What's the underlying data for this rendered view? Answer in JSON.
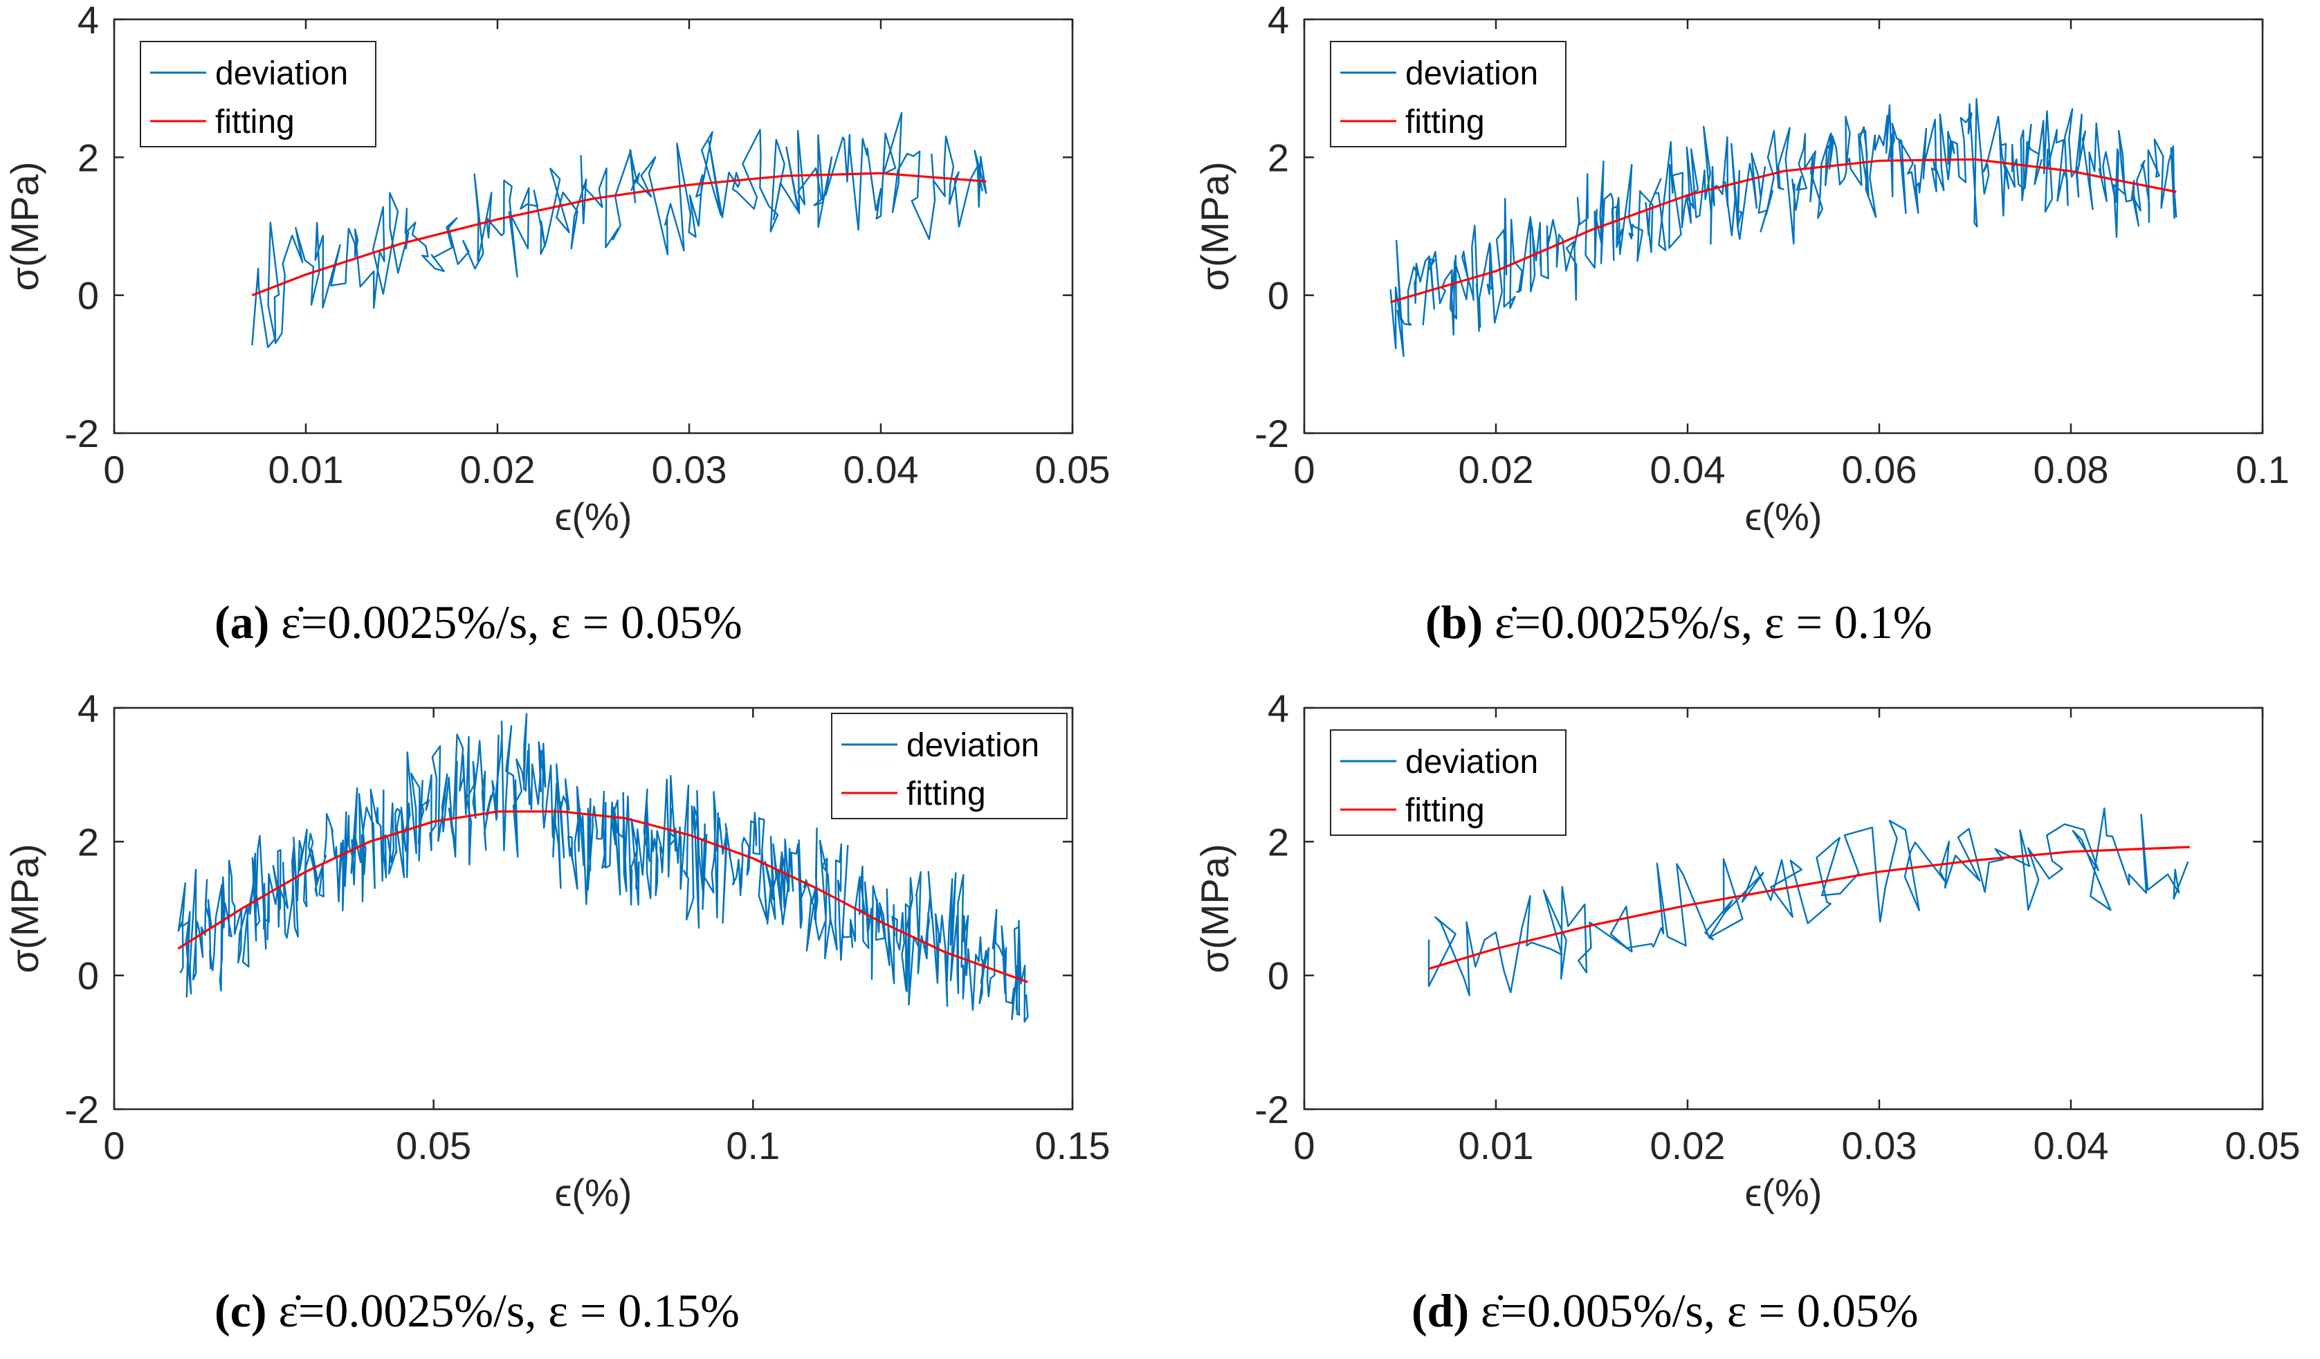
{
  "colors": {
    "deviation": "#0072BD",
    "fitting": "#FF0000",
    "axis": "#262626"
  },
  "chart_data": [
    {
      "id": "a",
      "type": "line",
      "caption": {
        "tag": "(a)",
        "text": "ε̇=0.0025%/s, ε = 0.05%"
      },
      "xlabel": "ϵ(%)",
      "ylabel": "σ(MPa)",
      "xlim": [
        0,
        0.05
      ],
      "ylim": [
        -2,
        4
      ],
      "xticks": [
        0,
        0.01,
        0.02,
        0.03,
        0.04,
        0.05
      ],
      "xtick_labels": [
        "0",
        "0.01",
        "0.02",
        "0.03",
        "0.04",
        "0.05"
      ],
      "yticks": [
        -2,
        0,
        2,
        4
      ],
      "ytick_labels": [
        "-2",
        "0",
        "2",
        "4"
      ],
      "legend": {
        "position": "top-left",
        "entries": [
          "deviation",
          "fitting"
        ]
      },
      "series": [
        {
          "name": "deviation",
          "noisy": true,
          "amplitude": 0.9,
          "points": 220,
          "x_range": [
            0.0072,
            0.0455
          ],
          "trend": [
            [
              0.0072,
              0.0
            ],
            [
              0.02,
              1.1
            ],
            [
              0.03,
              1.6
            ],
            [
              0.038,
              1.75
            ],
            [
              0.0455,
              1.65
            ]
          ]
        },
        {
          "name": "fitting",
          "x": [
            0.0072,
            0.01,
            0.015,
            0.02,
            0.025,
            0.03,
            0.035,
            0.04,
            0.0455
          ],
          "y": [
            0.0,
            0.3,
            0.75,
            1.1,
            1.4,
            1.6,
            1.73,
            1.77,
            1.65
          ]
        }
      ]
    },
    {
      "id": "b",
      "type": "line",
      "caption": {
        "tag": "(b)",
        "text": "ε̇=0.0025%/s, ε = 0.1%"
      },
      "xlabel": "ϵ(%)",
      "ylabel": "σ(MPa)",
      "xlim": [
        0,
        0.1
      ],
      "ylim": [
        -2,
        4
      ],
      "xticks": [
        0,
        0.02,
        0.04,
        0.06,
        0.08,
        0.1
      ],
      "xtick_labels": [
        "0",
        "0.02",
        "0.04",
        "0.06",
        "0.08",
        "0.1"
      ],
      "yticks": [
        -2,
        0,
        2,
        4
      ],
      "ytick_labels": [
        "-2",
        "0",
        "2",
        "4"
      ],
      "legend": {
        "position": "top-left",
        "entries": [
          "deviation",
          "fitting"
        ]
      },
      "series": [
        {
          "name": "deviation",
          "noisy": true,
          "amplitude": 0.85,
          "points": 420,
          "x_range": [
            0.009,
            0.091
          ],
          "trend": [
            [
              0.009,
              -0.1
            ],
            [
              0.02,
              0.35
            ],
            [
              0.04,
              1.4
            ],
            [
              0.06,
              1.95
            ],
            [
              0.07,
              1.95
            ],
            [
              0.08,
              1.8
            ],
            [
              0.091,
              1.5
            ]
          ]
        },
        {
          "name": "fitting",
          "x": [
            0.009,
            0.02,
            0.03,
            0.04,
            0.05,
            0.06,
            0.07,
            0.08,
            0.091
          ],
          "y": [
            -0.1,
            0.35,
            0.95,
            1.45,
            1.8,
            1.95,
            1.97,
            1.8,
            1.5
          ]
        }
      ]
    },
    {
      "id": "c",
      "type": "line",
      "caption": {
        "tag": "(c)",
        "text": "ε̇=0.0025%/s, ε = 0.15%"
      },
      "xlabel": "ϵ(%)",
      "ylabel": "σ(MPa)",
      "xlim": [
        0,
        0.15
      ],
      "ylim": [
        -2,
        4
      ],
      "xticks": [
        0,
        0.05,
        0.1,
        0.15
      ],
      "xtick_labels": [
        "0",
        "0.05",
        "0.1",
        "0.15"
      ],
      "yticks": [
        -2,
        0,
        2,
        4
      ],
      "ytick_labels": [
        "-2",
        "0",
        "2",
        "4"
      ],
      "legend": {
        "position": "top-right",
        "entries": [
          "deviation",
          "fitting"
        ]
      },
      "series": [
        {
          "name": "deviation",
          "noisy": true,
          "amplitude": 1.0,
          "points": 650,
          "x_range": [
            0.01,
            0.143
          ],
          "trend": [
            [
              0.01,
              0.4
            ],
            [
              0.03,
              1.5
            ],
            [
              0.05,
              2.6
            ],
            [
              0.065,
              2.9
            ],
            [
              0.07,
              2.3
            ],
            [
              0.1,
              1.6
            ],
            [
              0.12,
              0.9
            ],
            [
              0.143,
              -0.1
            ]
          ]
        },
        {
          "name": "fitting",
          "x": [
            0.01,
            0.02,
            0.03,
            0.04,
            0.05,
            0.06,
            0.07,
            0.08,
            0.09,
            0.1,
            0.11,
            0.12,
            0.13,
            0.143
          ],
          "y": [
            0.4,
            1.0,
            1.55,
            2.0,
            2.3,
            2.45,
            2.45,
            2.35,
            2.1,
            1.75,
            1.3,
            0.8,
            0.35,
            -0.1
          ]
        }
      ]
    },
    {
      "id": "d",
      "type": "line",
      "caption": {
        "tag": "(d)",
        "text": "ε̇=0.005%/s, ε = 0.05%"
      },
      "xlabel": "ϵ(%)",
      "ylabel": "σ(MPa)",
      "xlim": [
        0,
        0.05
      ],
      "ylim": [
        -2,
        4
      ],
      "xticks": [
        0,
        0.01,
        0.02,
        0.03,
        0.04,
        0.05
      ],
      "xtick_labels": [
        "0",
        "0.01",
        "0.02",
        "0.03",
        "0.04",
        "0.05"
      ],
      "yticks": [
        -2,
        0,
        2,
        4
      ],
      "ytick_labels": [
        "-2",
        "0",
        "2",
        "4"
      ],
      "legend": {
        "position": "top-left",
        "entries": [
          "deviation",
          "fitting"
        ]
      },
      "series": [
        {
          "name": "deviation",
          "noisy": true,
          "amplitude": 0.8,
          "points": 120,
          "x_range": [
            0.0065,
            0.0462
          ],
          "trend": [
            [
              0.0065,
              0.1
            ],
            [
              0.02,
              1.0
            ],
            [
              0.03,
              1.55
            ],
            [
              0.04,
              1.85
            ],
            [
              0.0462,
              1.9
            ]
          ]
        },
        {
          "name": "fitting",
          "x": [
            0.0065,
            0.01,
            0.015,
            0.02,
            0.025,
            0.03,
            0.035,
            0.04,
            0.0462
          ],
          "y": [
            0.1,
            0.4,
            0.75,
            1.05,
            1.3,
            1.55,
            1.72,
            1.85,
            1.92
          ]
        }
      ]
    }
  ]
}
